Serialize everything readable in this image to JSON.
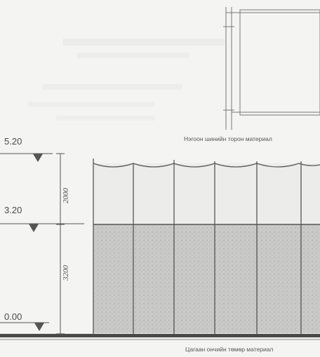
{
  "drawing": {
    "levels": [
      "5.20",
      "3.20",
      "0.00"
    ],
    "dimensions": [
      "2000",
      "3200"
    ],
    "top_note": "Нэгоон шинийн торон материал",
    "bottom_note": "Цагаан ончийн төмөр материал"
  },
  "colors": {
    "line": "#555555",
    "hatch_fill": "#c8c8c6",
    "panel_fill": "#ececea",
    "ground": "#4a4a4a"
  }
}
